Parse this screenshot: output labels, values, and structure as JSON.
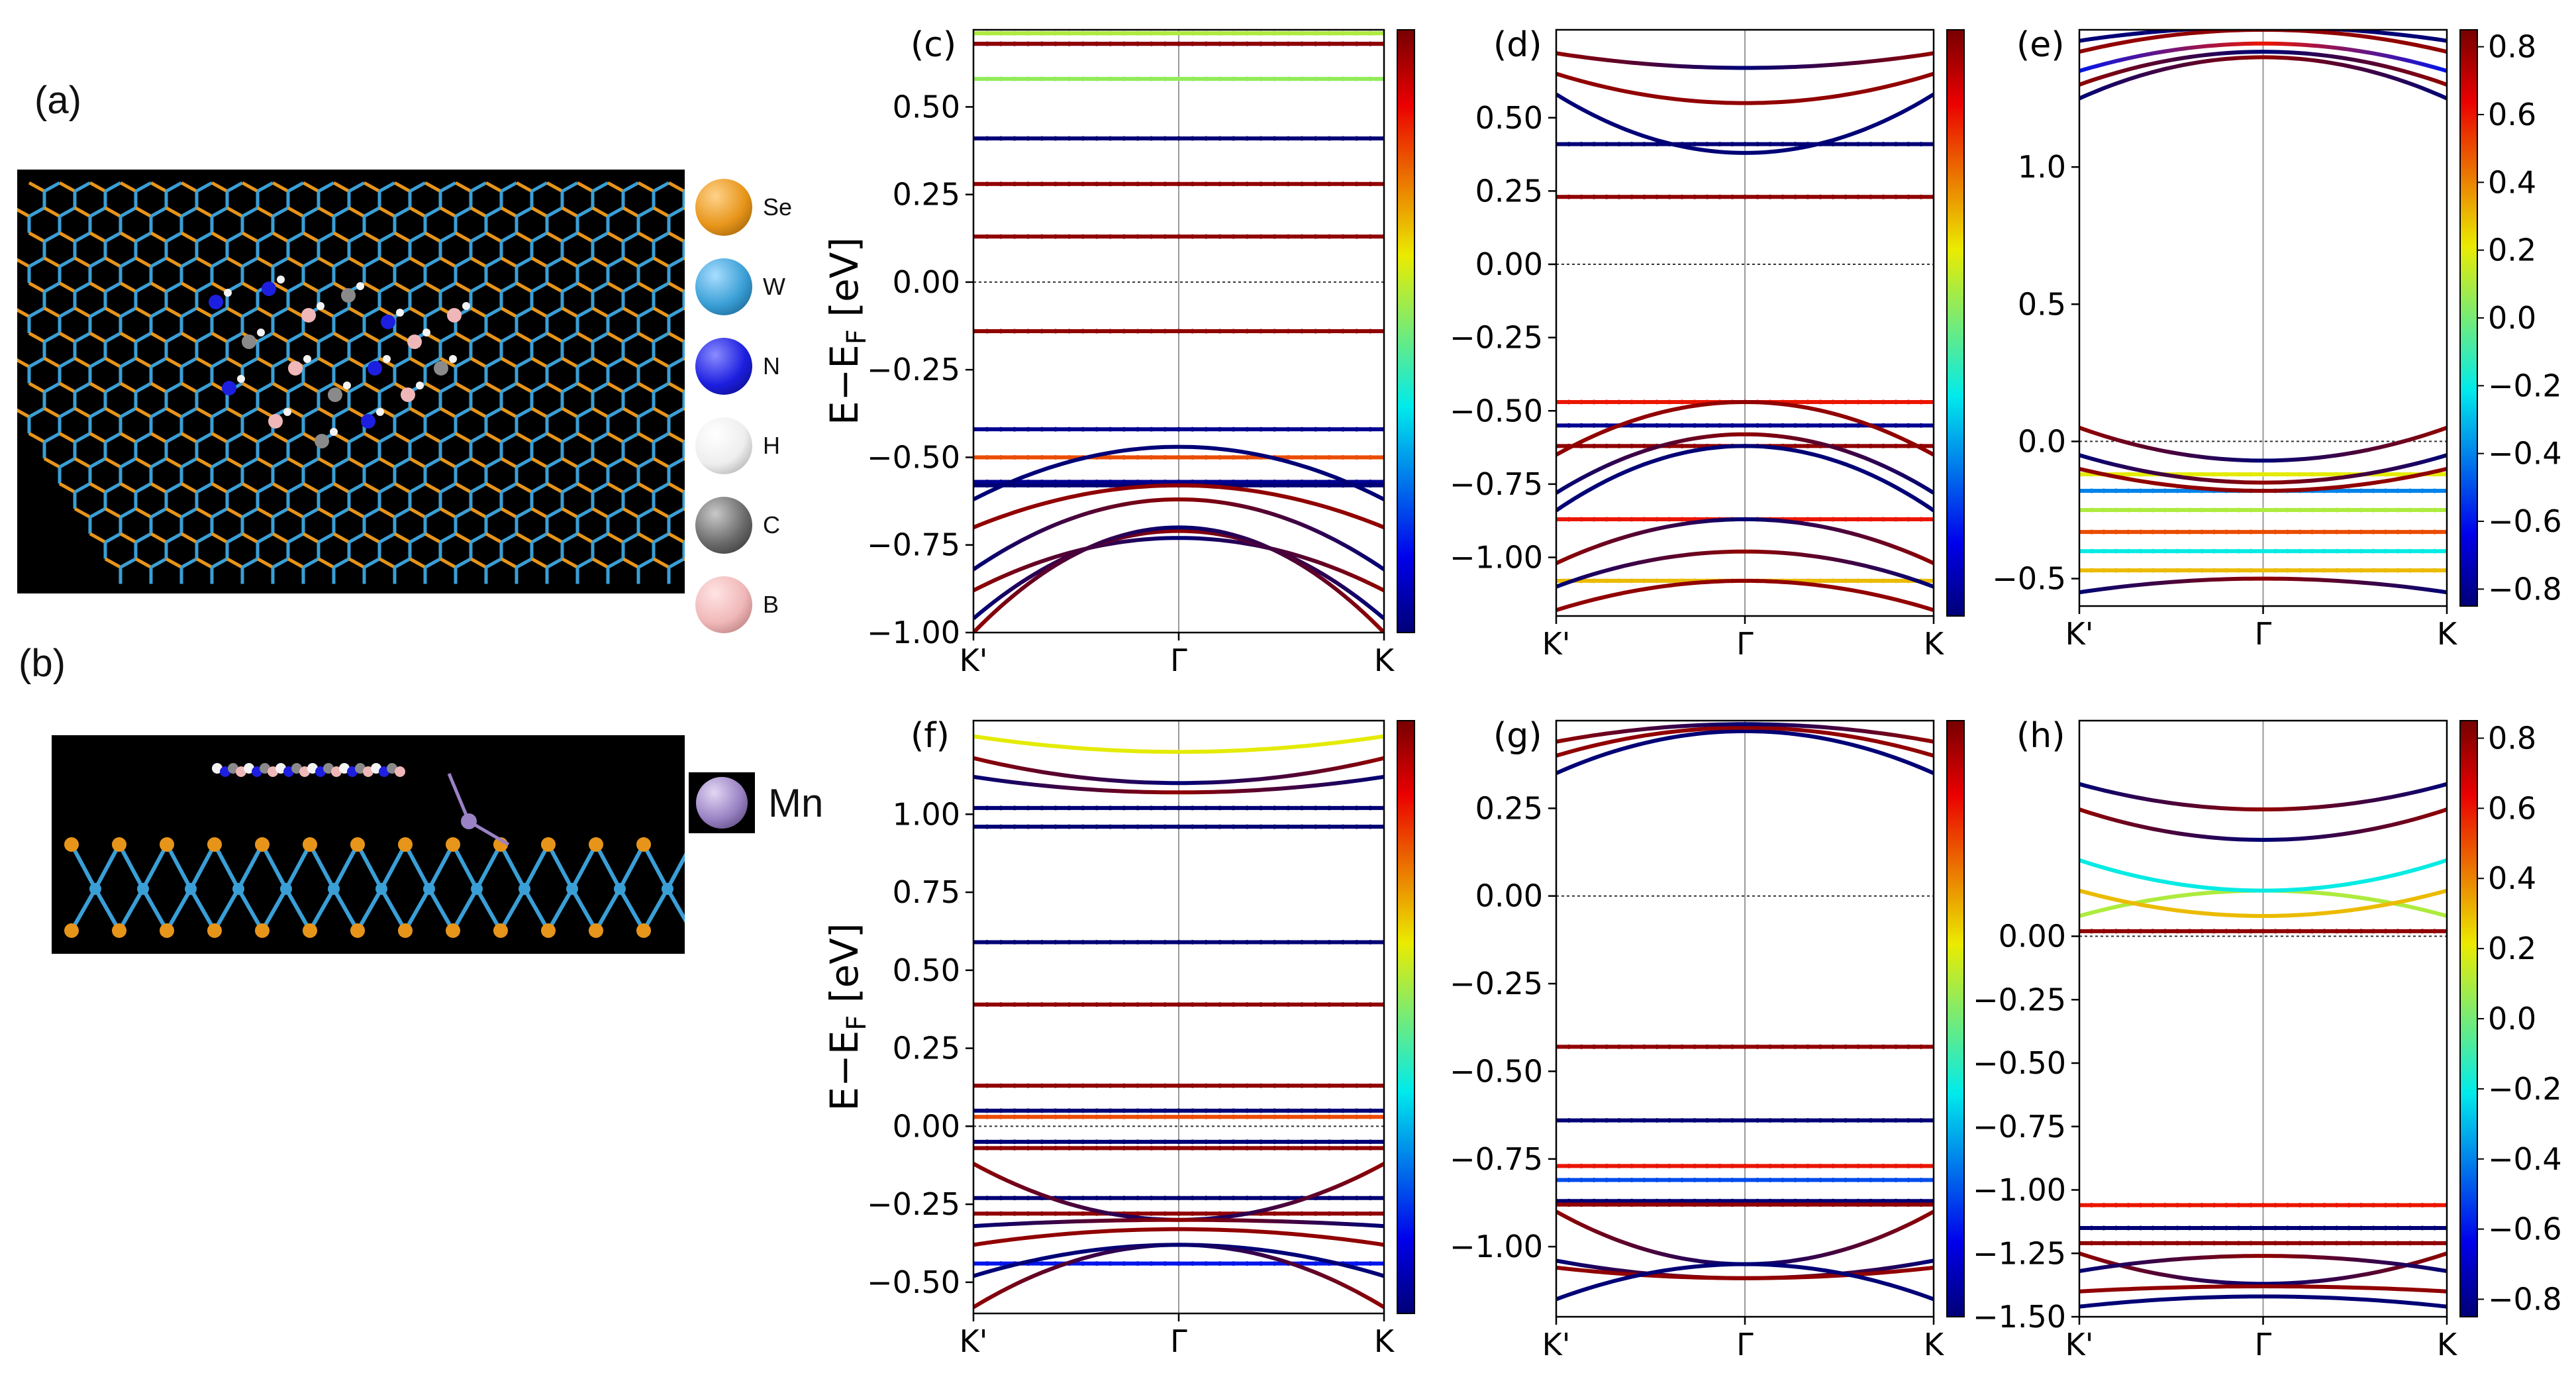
{
  "panels": {
    "a": "(a)",
    "b": "(b)",
    "c": "(c)",
    "d": "(d)",
    "e": "(e)",
    "f": "(f)",
    "g": "(g)",
    "h": "(h)"
  },
  "legend": [
    {
      "label": "Se",
      "color": "#e7951a"
    },
    {
      "label": "W",
      "color": "#3a9fd6"
    },
    {
      "label": "N",
      "color": "#1d1fe0"
    },
    {
      "label": "H",
      "color": "#f3f3f3"
    },
    {
      "label": "C",
      "color": "#6b6b6b"
    },
    {
      "label": "B",
      "color": "#f0b7b8"
    }
  ],
  "mn_legend": {
    "label": "Mn",
    "color": "#9a82c4"
  },
  "ylabel": "E−E",
  "ylabel_sub": "F",
  "ylabel_unit": " [eV]",
  "kpath": [
    "K'",
    "Γ",
    "K"
  ],
  "colorbar": {
    "ticks": [
      "0.8",
      "0.6",
      "0.4",
      "0.2",
      "0.0",
      "−0.2",
      "−0.4",
      "−0.6",
      "−0.8"
    ],
    "range": [
      -0.85,
      0.85
    ]
  },
  "chart_data": [
    {
      "panel": "(c)",
      "type": "line",
      "ylim": [
        -1.0,
        0.72
      ],
      "fermi": 0.0,
      "yticks": [
        "0.50",
        "0.25",
        "0.00",
        "−0.25",
        "−0.50",
        "−0.75",
        "−1.00"
      ],
      "yvals": [
        0.5,
        0.25,
        0.0,
        -0.25,
        -0.5,
        -0.75,
        -1.0
      ],
      "show_ylabel": true,
      "show_cbar_labels": false,
      "flat": [
        [
          0.71,
          0.1
        ],
        [
          0.68,
          -0.7
        ],
        [
          0.68,
          0.8
        ],
        [
          0.58,
          0.05
        ],
        [
          0.41,
          -0.85
        ],
        [
          0.28,
          0.8
        ],
        [
          0.13,
          0.8
        ],
        [
          -0.14,
          0.8
        ],
        [
          -0.42,
          -0.8
        ],
        [
          -0.5,
          0.5
        ],
        [
          -0.57,
          -0.8
        ],
        [
          -0.58,
          -0.9
        ]
      ],
      "disp": [
        [
          -0.62,
          0.15,
          -0.85,
          -0.85
        ],
        [
          -0.7,
          0.12,
          0.8,
          0.8
        ],
        [
          -0.82,
          0.2,
          -0.85,
          0.8
        ],
        [
          -0.88,
          0.15,
          0.8,
          -0.85
        ],
        [
          -0.96,
          0.25,
          -0.85,
          0.8
        ],
        [
          -1.0,
          0.3,
          0.8,
          -0.85
        ]
      ]
    },
    {
      "panel": "(d)",
      "type": "line",
      "ylim": [
        -1.2,
        0.8
      ],
      "fermi": 0.0,
      "yticks": [
        "0.50",
        "0.25",
        "0.00",
        "−0.25",
        "−0.50",
        "−0.75",
        "−1.00"
      ],
      "yvals": [
        0.5,
        0.25,
        0.0,
        -0.25,
        -0.5,
        -0.75,
        -1.0
      ],
      "show_ylabel": false,
      "show_cbar_labels": false,
      "flat": [
        [
          0.41,
          -0.85
        ],
        [
          0.23,
          0.8
        ],
        [
          -0.47,
          0.6
        ],
        [
          -0.55,
          -0.8
        ],
        [
          -0.62,
          0.8
        ],
        [
          -0.87,
          0.6
        ],
        [
          -1.08,
          0.3
        ]
      ],
      "disp": [
        [
          0.58,
          -0.2,
          -0.85,
          -0.85
        ],
        [
          0.65,
          -0.1,
          0.8,
          0.8
        ],
        [
          0.72,
          -0.05,
          0.8,
          -0.85
        ],
        [
          -0.65,
          0.18,
          0.8,
          0.8
        ],
        [
          -0.78,
          0.2,
          -0.85,
          0.8
        ],
        [
          -0.84,
          0.22,
          -0.85,
          -0.85
        ],
        [
          -1.02,
          0.15,
          0.8,
          -0.85
        ],
        [
          -1.1,
          0.12,
          -0.85,
          0.8
        ],
        [
          -1.18,
          0.1,
          0.8,
          0.8
        ]
      ]
    },
    {
      "panel": "(e)",
      "type": "line",
      "ylim": [
        -0.6,
        1.5
      ],
      "fermi": 0.0,
      "yticks": [
        "1.0",
        "0.5",
        "0.0",
        "−0.5"
      ],
      "yvals": [
        1.0,
        0.5,
        0.0,
        -0.5
      ],
      "show_ylabel": false,
      "show_cbar_labels": true,
      "flat": [
        [
          -0.12,
          0.2
        ],
        [
          -0.18,
          -0.4
        ],
        [
          -0.25,
          0.1
        ],
        [
          -0.33,
          0.5
        ],
        [
          -0.4,
          -0.2
        ],
        [
          -0.47,
          0.3
        ]
      ],
      "disp": [
        [
          1.25,
          0.15,
          -0.85,
          0.8
        ],
        [
          1.3,
          0.12,
          0.8,
          -0.85
        ],
        [
          1.35,
          0.1,
          -0.6,
          0.6
        ],
        [
          1.42,
          0.08,
          0.8,
          0.8
        ],
        [
          1.46,
          0.05,
          -0.85,
          -0.85
        ],
        [
          0.05,
          -0.12,
          0.8,
          -0.85
        ],
        [
          -0.05,
          -0.1,
          -0.85,
          0.8
        ],
        [
          -0.1,
          -0.08,
          0.8,
          0.8
        ],
        [
          -0.55,
          0.05,
          -0.85,
          0.8
        ]
      ]
    },
    {
      "panel": "(f)",
      "type": "line",
      "ylim": [
        -0.6,
        1.3
      ],
      "fermi": 0.0,
      "yticks": [
        "1.00",
        "0.75",
        "0.50",
        "0.25",
        "0.00",
        "−0.25",
        "−0.50"
      ],
      "yvals": [
        1.0,
        0.75,
        0.5,
        0.25,
        0.0,
        -0.25,
        -0.5
      ],
      "show_ylabel": true,
      "show_cbar_labels": false,
      "flat": [
        [
          1.02,
          -0.85
        ],
        [
          0.96,
          -0.85
        ],
        [
          0.59,
          -0.85
        ],
        [
          0.39,
          0.8
        ],
        [
          0.13,
          0.8
        ],
        [
          0.05,
          -0.85
        ],
        [
          0.03,
          0.5
        ],
        [
          -0.05,
          -0.85
        ],
        [
          -0.07,
          0.8
        ],
        [
          -0.23,
          -0.85
        ],
        [
          -0.28,
          0.8
        ],
        [
          -0.44,
          -0.6
        ]
      ],
      "disp": [
        [
          1.12,
          -0.05,
          -0.85,
          0.8
        ],
        [
          1.18,
          -0.08,
          0.8,
          -0.85
        ],
        [
          1.25,
          -0.05,
          0.2,
          0.2
        ],
        [
          -0.12,
          -0.18,
          0.8,
          -0.85
        ],
        [
          -0.32,
          0.02,
          -0.85,
          0.8
        ],
        [
          -0.38,
          0.05,
          0.8,
          0.8
        ],
        [
          -0.48,
          0.1,
          -0.85,
          -0.85
        ],
        [
          -0.58,
          0.2,
          0.8,
          -0.85
        ]
      ]
    },
    {
      "panel": "(g)",
      "type": "line",
      "ylim": [
        -1.2,
        0.5
      ],
      "fermi": 0.0,
      "yticks": [
        "0.25",
        "0.00",
        "−0.25",
        "−0.50",
        "−0.75",
        "−1.00"
      ],
      "yvals": [
        0.25,
        0.0,
        -0.25,
        -0.5,
        -0.75,
        -1.0
      ],
      "show_ylabel": false,
      "show_cbar_labels": false,
      "flat": [
        [
          -0.43,
          0.8
        ],
        [
          -0.64,
          -0.85
        ],
        [
          -0.77,
          0.6
        ],
        [
          -0.81,
          -0.5
        ],
        [
          -0.87,
          -0.85
        ],
        [
          -0.88,
          0.8
        ]
      ],
      "disp": [
        [
          0.35,
          0.12,
          -0.85,
          -0.85
        ],
        [
          0.4,
          0.08,
          0.8,
          0.8
        ],
        [
          0.44,
          0.05,
          0.8,
          -0.85
        ],
        [
          -0.9,
          -0.15,
          0.8,
          -0.85
        ],
        [
          -1.04,
          -0.05,
          -0.85,
          0.8
        ],
        [
          -1.06,
          -0.03,
          0.8,
          0.8
        ],
        [
          -1.15,
          0.1,
          -0.85,
          -0.85
        ]
      ]
    },
    {
      "panel": "(h)",
      "type": "line",
      "ylim": [
        -1.5,
        0.85
      ],
      "fermi": 0.0,
      "yticks": [
        "0.00",
        "−0.25",
        "−0.50",
        "−0.75",
        "−1.00",
        "−1.25",
        "−1.50"
      ],
      "yvals": [
        0.0,
        -0.25,
        -0.5,
        -0.75,
        -1.0,
        -1.25,
        -1.5
      ],
      "show_ylabel": false,
      "show_cbar_labels": true,
      "flat": [
        [
          0.02,
          0.8
        ],
        [
          -1.06,
          0.6
        ],
        [
          -1.15,
          -0.85
        ],
        [
          -1.21,
          0.8
        ]
      ],
      "disp": [
        [
          0.08,
          0.1,
          0.1,
          0.1
        ],
        [
          0.18,
          -0.1,
          0.3,
          0.3
        ],
        [
          0.3,
          -0.12,
          -0.2,
          -0.2
        ],
        [
          0.5,
          -0.12,
          0.8,
          -0.85
        ],
        [
          0.6,
          -0.1,
          -0.85,
          0.8
        ],
        [
          -1.25,
          -0.12,
          0.8,
          -0.85
        ],
        [
          -1.32,
          0.06,
          -0.85,
          0.8
        ],
        [
          -1.4,
          0.02,
          0.8,
          0.8
        ],
        [
          -1.46,
          0.04,
          -0.85,
          -0.85
        ]
      ]
    }
  ]
}
